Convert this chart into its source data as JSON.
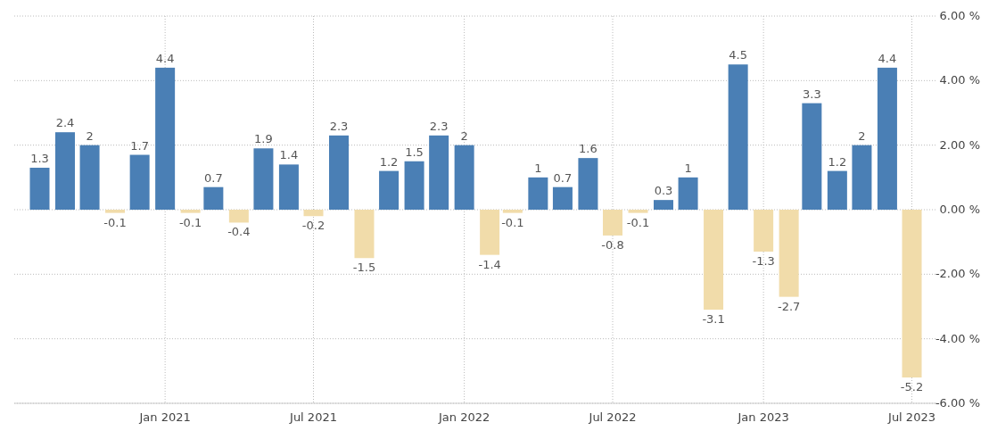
{
  "chart_data": {
    "type": "bar",
    "x": [
      "2020-08",
      "2020-09",
      "2020-10",
      "2020-11",
      "2020-12",
      "2021-01",
      "2021-02",
      "2021-03",
      "2021-04",
      "2021-05",
      "2021-06",
      "2021-07",
      "2021-08",
      "2021-09",
      "2021-10",
      "2021-11",
      "2021-12",
      "2022-01",
      "2022-02",
      "2022-03",
      "2022-04",
      "2022-05",
      "2022-06",
      "2022-07",
      "2022-08",
      "2022-09",
      "2022-10",
      "2022-11",
      "2022-12",
      "2023-01",
      "2023-02",
      "2023-03",
      "2023-04",
      "2023-05",
      "2023-06",
      "2023-07"
    ],
    "values": [
      1.3,
      2.4,
      2,
      -0.1,
      1.7,
      4.4,
      -0.1,
      0.7,
      -0.4,
      1.9,
      1.4,
      -0.2,
      2.3,
      -1.5,
      1.2,
      1.5,
      2.3,
      2,
      -1.4,
      -0.1,
      1,
      0.7,
      1.6,
      -0.8,
      -0.1,
      0.3,
      1,
      -3.1,
      4.5,
      -1.3,
      -2.7,
      3.3,
      1.2,
      2,
      4.4,
      -5.2
    ],
    "colors": [
      "#4a7fb5",
      "#4a7fb5",
      "#4a7fb5",
      "#f1dcaa",
      "#4a7fb5",
      "#4a7fb5",
      "#f1dcaa",
      "#4a7fb5",
      "#f1dcaa",
      "#4a7fb5",
      "#4a7fb5",
      "#f1dcaa",
      "#4a7fb5",
      "#f1dcaa",
      "#4a7fb5",
      "#4a7fb5",
      "#4a7fb5",
      "#4a7fb5",
      "#f1dcaa",
      "#f1dcaa",
      "#4a7fb5",
      "#4a7fb5",
      "#4a7fb5",
      "#f1dcaa",
      "#f1dcaa",
      "#4a7fb5",
      "#4a7fb5",
      "#f1dcaa",
      "#4a7fb5",
      "#f1dcaa",
      "#f1dcaa",
      "#4a7fb5",
      "#4a7fb5",
      "#4a7fb5",
      "#4a7fb5",
      "#f1dcaa"
    ],
    "xlim": [
      "2020-07",
      "2023-08"
    ],
    "xticks": [
      {
        "value": "2021-01",
        "label": "Jan 2021"
      },
      {
        "value": "2021-07",
        "label": "Jul 2021"
      },
      {
        "value": "2022-01",
        "label": "Jan 2022"
      },
      {
        "value": "2022-07",
        "label": "Jul 2022"
      },
      {
        "value": "2023-01",
        "label": "Jan 2023"
      },
      {
        "value": "2023-07",
        "label": "Jul 2023"
      }
    ],
    "ylim": [
      -6,
      6
    ],
    "yticks": [
      {
        "value": 6,
        "label": "6.00 %"
      },
      {
        "value": 4,
        "label": "4.00 %"
      },
      {
        "value": 2,
        "label": "2.00 %"
      },
      {
        "value": 0,
        "label": "0.00 %"
      },
      {
        "value": -2,
        "label": "-2.00 %"
      },
      {
        "value": -4,
        "label": "-4.00 %"
      },
      {
        "value": -6,
        "label": "-6.00 %"
      }
    ],
    "grid": true,
    "data_labels": true
  }
}
